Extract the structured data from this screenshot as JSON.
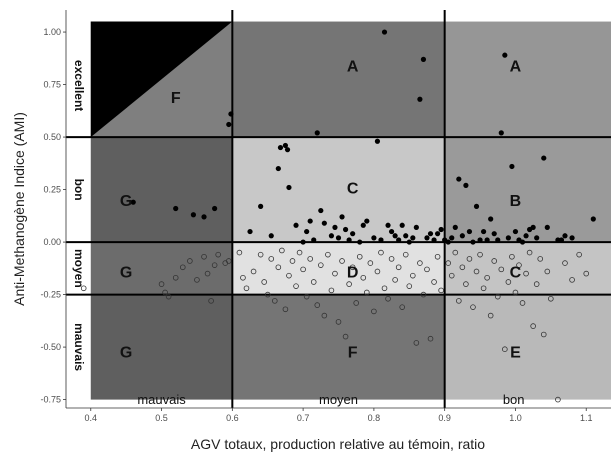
{
  "chart_data": {
    "type": "scatter",
    "xlabel": "AGV totaux, production relative au témoin, ratio",
    "ylabel": "Anti-Methanogène Indice (AMI)",
    "xlim": [
      0.365,
      1.135
    ],
    "ylim": [
      -0.79,
      1.105
    ],
    "x_ticks": [
      "0.4",
      "0.5",
      "0.6",
      "0.7",
      "0.8",
      "0.9",
      "1.0",
      "1.1"
    ],
    "y_ticks": [
      "-0.75",
      "-0.50",
      "-0.25",
      "0.00",
      "0.25",
      "0.50",
      "0.75",
      "1.00"
    ],
    "grid": false,
    "x_split_lines": [
      0.6,
      0.9
    ],
    "y_split_lines": [
      0.5,
      0.0,
      -0.25
    ],
    "x_categories": [
      "mauvais",
      "moyen",
      "bon"
    ],
    "y_categories": [
      "excellent",
      "bon",
      "moyen",
      "mauvais"
    ],
    "zones": [
      {
        "label": "F",
        "color": "#7f7f7f"
      },
      {
        "label": "A",
        "color": "#757575"
      },
      {
        "label": "A",
        "color": "#969696"
      },
      {
        "label": "G",
        "color": "#5f5f5f"
      },
      {
        "label": "C",
        "color": "#c8c8c8"
      },
      {
        "label": "B",
        "color": "#9a9a9a"
      },
      {
        "label": "G",
        "color": "#6c6c6c"
      },
      {
        "label": "D",
        "color": "#e1e1e1"
      },
      {
        "label": "C",
        "color": "#c4c4c4"
      },
      {
        "label": "G",
        "color": "#5f5f5f"
      },
      {
        "label": "F",
        "color": "#757575"
      },
      {
        "label": "E",
        "color": "#b9b9b9"
      }
    ],
    "corner_triangle_color": "#000000",
    "series": [
      {
        "marker": "filled-circle",
        "color": "#000000",
        "points": [
          [
            0.46,
            0.19
          ],
          [
            0.52,
            0.16
          ],
          [
            0.545,
            0.13
          ],
          [
            0.56,
            0.12
          ],
          [
            0.575,
            0.16
          ],
          [
            0.595,
            0.56
          ],
          [
            0.598,
            0.61
          ],
          [
            0.625,
            0.05
          ],
          [
            0.64,
            0.17
          ],
          [
            0.655,
            0.03
          ],
          [
            0.665,
            0.35
          ],
          [
            0.668,
            0.45
          ],
          [
            0.675,
            0.46
          ],
          [
            0.678,
            0.44
          ],
          [
            0.68,
            0.26
          ],
          [
            0.69,
            0.08
          ],
          [
            0.7,
            0.0
          ],
          [
            0.705,
            0.05
          ],
          [
            0.71,
            0.1
          ],
          [
            0.715,
            0.01
          ],
          [
            0.72,
            0.52
          ],
          [
            0.725,
            0.15
          ],
          [
            0.73,
            0.09
          ],
          [
            0.74,
            0.03
          ],
          [
            0.745,
            0.07
          ],
          [
            0.75,
            0.02
          ],
          [
            0.755,
            0.12
          ],
          [
            0.76,
            0.06
          ],
          [
            0.765,
            0.01
          ],
          [
            0.77,
            0.04
          ],
          [
            0.78,
            0.0
          ],
          [
            0.785,
            0.08
          ],
          [
            0.79,
            0.1
          ],
          [
            0.8,
            0.02
          ],
          [
            0.805,
            0.48
          ],
          [
            0.81,
            0.01
          ],
          [
            0.815,
            1.0
          ],
          [
            0.82,
            0.08
          ],
          [
            0.825,
            0.05
          ],
          [
            0.83,
            0.03
          ],
          [
            0.835,
            0.01
          ],
          [
            0.84,
            0.08
          ],
          [
            0.845,
            0.03
          ],
          [
            0.85,
            0.0
          ],
          [
            0.855,
            0.02
          ],
          [
            0.86,
            0.07
          ],
          [
            0.865,
            0.68
          ],
          [
            0.87,
            0.87
          ],
          [
            0.875,
            0.02
          ],
          [
            0.88,
            0.04
          ],
          [
            0.885,
            0.01
          ],
          [
            0.89,
            0.04
          ],
          [
            0.895,
            0.06
          ],
          [
            0.9,
            0.01
          ],
          [
            0.905,
            0.0
          ],
          [
            0.91,
            0.02
          ],
          [
            0.915,
            0.07
          ],
          [
            0.92,
            0.3
          ],
          [
            0.925,
            0.03
          ],
          [
            0.93,
            0.27
          ],
          [
            0.935,
            0.05
          ],
          [
            0.94,
            0.0
          ],
          [
            0.945,
            0.17
          ],
          [
            0.95,
            0.01
          ],
          [
            0.955,
            0.05
          ],
          [
            0.96,
            0.01
          ],
          [
            0.965,
            0.11
          ],
          [
            0.97,
            0.04
          ],
          [
            0.975,
            0.01
          ],
          [
            0.98,
            0.52
          ],
          [
            0.985,
            0.89
          ],
          [
            0.99,
            0.02
          ],
          [
            0.995,
            0.36
          ],
          [
            1.0,
            0.05
          ],
          [
            1.005,
            0.01
          ],
          [
            1.01,
            0.0
          ],
          [
            1.015,
            0.03
          ],
          [
            1.02,
            0.06
          ],
          [
            1.025,
            0.07
          ],
          [
            1.03,
            0.02
          ],
          [
            1.04,
            0.4
          ],
          [
            1.045,
            0.07
          ],
          [
            1.06,
            0.01
          ],
          [
            1.065,
            0.01
          ],
          [
            1.07,
            0.03
          ],
          [
            1.08,
            0.02
          ],
          [
            1.11,
            0.11
          ]
        ]
      },
      {
        "marker": "open-circle",
        "color": "#333333",
        "points": [
          [
            0.39,
            -0.22
          ],
          [
            0.5,
            -0.2
          ],
          [
            0.505,
            -0.24
          ],
          [
            0.51,
            -0.26
          ],
          [
            0.52,
            -0.17
          ],
          [
            0.53,
            -0.12
          ],
          [
            0.54,
            -0.09
          ],
          [
            0.55,
            -0.18
          ],
          [
            0.56,
            -0.07
          ],
          [
            0.565,
            -0.15
          ],
          [
            0.57,
            -0.28
          ],
          [
            0.575,
            -0.11
          ],
          [
            0.58,
            -0.06
          ],
          [
            0.59,
            -0.1
          ],
          [
            0.595,
            -0.09
          ],
          [
            0.61,
            -0.05
          ],
          [
            0.615,
            -0.17
          ],
          [
            0.62,
            -0.22
          ],
          [
            0.63,
            -0.14
          ],
          [
            0.64,
            -0.06
          ],
          [
            0.645,
            -0.19
          ],
          [
            0.65,
            -0.25
          ],
          [
            0.655,
            -0.08
          ],
          [
            0.66,
            -0.28
          ],
          [
            0.665,
            -0.12
          ],
          [
            0.67,
            -0.04
          ],
          [
            0.675,
            -0.32
          ],
          [
            0.68,
            -0.16
          ],
          [
            0.685,
            -0.09
          ],
          [
            0.69,
            -0.21
          ],
          [
            0.695,
            -0.05
          ],
          [
            0.7,
            -0.13
          ],
          [
            0.705,
            -0.26
          ],
          [
            0.71,
            -0.08
          ],
          [
            0.715,
            -0.19
          ],
          [
            0.72,
            -0.3
          ],
          [
            0.725,
            -0.11
          ],
          [
            0.73,
            -0.35
          ],
          [
            0.735,
            -0.06
          ],
          [
            0.74,
            -0.23
          ],
          [
            0.745,
            -0.15
          ],
          [
            0.75,
            -0.38
          ],
          [
            0.755,
            -0.09
          ],
          [
            0.76,
            -0.45
          ],
          [
            0.765,
            -0.2
          ],
          [
            0.77,
            -0.12
          ],
          [
            0.775,
            -0.29
          ],
          [
            0.78,
            -0.07
          ],
          [
            0.785,
            -0.17
          ],
          [
            0.79,
            -0.24
          ],
          [
            0.795,
            -0.1
          ],
          [
            0.8,
            -0.33
          ],
          [
            0.805,
            -0.14
          ],
          [
            0.81,
            -0.05
          ],
          [
            0.815,
            -0.22
          ],
          [
            0.82,
            -0.27
          ],
          [
            0.825,
            -0.08
          ],
          [
            0.83,
            -0.18
          ],
          [
            0.835,
            -0.12
          ],
          [
            0.84,
            -0.31
          ],
          [
            0.845,
            -0.06
          ],
          [
            0.85,
            -0.21
          ],
          [
            0.855,
            -0.16
          ],
          [
            0.86,
            -0.48
          ],
          [
            0.865,
            -0.1
          ],
          [
            0.87,
            -0.25
          ],
          [
            0.875,
            -0.13
          ],
          [
            0.88,
            -0.46
          ],
          [
            0.885,
            -0.19
          ],
          [
            0.89,
            -0.07
          ],
          [
            0.895,
            -0.23
          ],
          [
            0.905,
            -0.1
          ],
          [
            0.91,
            -0.16
          ],
          [
            0.915,
            -0.05
          ],
          [
            0.92,
            -0.28
          ],
          [
            0.925,
            -0.12
          ],
          [
            0.93,
            -0.2
          ],
          [
            0.935,
            -0.08
          ],
          [
            0.94,
            -0.31
          ],
          [
            0.945,
            -0.14
          ],
          [
            0.95,
            -0.06
          ],
          [
            0.955,
            -0.22
          ],
          [
            0.96,
            -0.17
          ],
          [
            0.965,
            -0.35
          ],
          [
            0.97,
            -0.09
          ],
          [
            0.975,
            -0.26
          ],
          [
            0.98,
            -0.13
          ],
          [
            0.985,
            -0.51
          ],
          [
            0.99,
            -0.19
          ],
          [
            0.995,
            -0.07
          ],
          [
            1.0,
            -0.24
          ],
          [
            1.005,
            -0.11
          ],
          [
            1.01,
            -0.29
          ],
          [
            1.015,
            -0.15
          ],
          [
            1.02,
            -0.05
          ],
          [
            1.025,
            -0.4
          ],
          [
            1.03,
            -0.2
          ],
          [
            1.035,
            -0.08
          ],
          [
            1.04,
            -0.44
          ],
          [
            1.045,
            -0.14
          ],
          [
            1.05,
            -0.27
          ],
          [
            1.06,
            -0.75
          ],
          [
            1.07,
            -0.1
          ],
          [
            1.08,
            -0.18
          ],
          [
            1.09,
            -0.06
          ],
          [
            1.1,
            -0.15
          ]
        ]
      }
    ]
  }
}
